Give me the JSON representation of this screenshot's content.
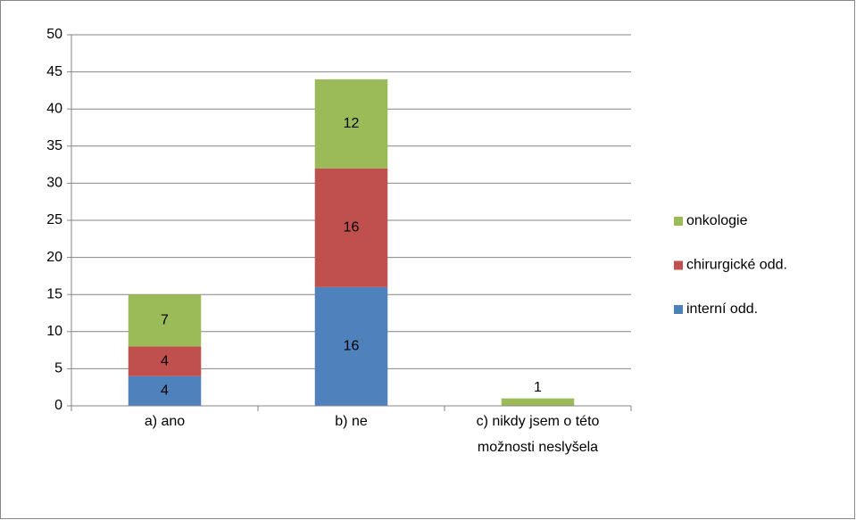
{
  "chart_data": {
    "type": "stacked_bar",
    "categories": [
      "a) ano",
      "b) ne",
      "c) nikdy jsem o této možnosti neslyšela"
    ],
    "series": [
      {
        "name": "interní odd.",
        "color": "#4f81bd",
        "values": [
          4,
          16,
          0
        ]
      },
      {
        "name": "chirurgické odd.",
        "color": "#c0504d",
        "values": [
          4,
          16,
          0
        ]
      },
      {
        "name": "onkologie",
        "color": "#9bbb59",
        "values": [
          7,
          12,
          1
        ]
      }
    ],
    "ylim": [
      0,
      50
    ],
    "yticks": [
      0,
      5,
      10,
      15,
      20,
      25,
      30,
      35,
      40,
      45,
      50
    ],
    "grid": true,
    "legend": "right"
  }
}
